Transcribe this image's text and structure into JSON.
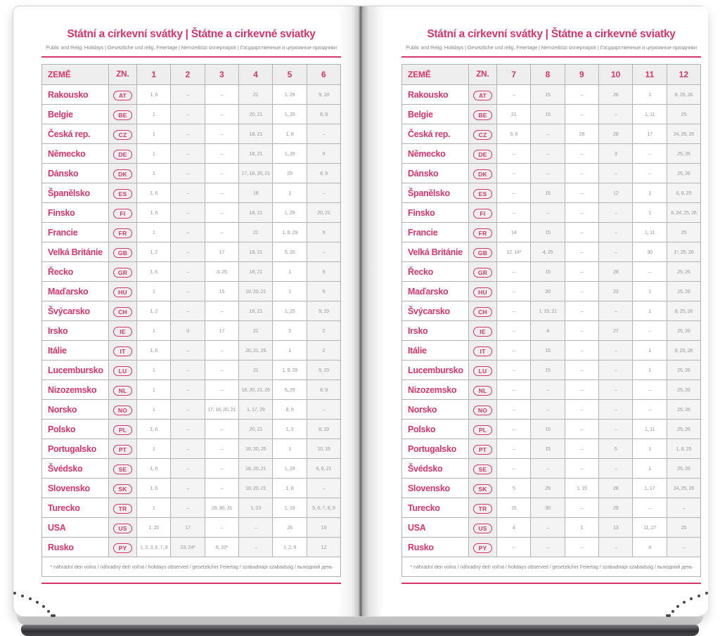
{
  "colors": {
    "accent": "#d8356b",
    "value_text": "#9a9a9a",
    "border": "#b3b3b3"
  },
  "page_header": {
    "title": "Státní a církevní svátky | Štátne a cirkevné sviatky",
    "subtitle": "Public and Relig. Holidays | Gesetzliche und relig. Feiertage | Nemzetközi ünnepnapok | Государственные и церковные праздники"
  },
  "table": {
    "country_header": "ZEMĚ",
    "code_header": "ZN.",
    "left_months": [
      "1",
      "2",
      "3",
      "4",
      "5",
      "6"
    ],
    "right_months": [
      "7",
      "8",
      "9",
      "10",
      "11",
      "12"
    ],
    "footnote": "* náhradní den volna / náhradný deň voľna / holidays observed / gesetzlicher Feiertag / szabadnapi szabadság / выходной день",
    "rows": [
      {
        "country": "Rakousko",
        "code": "AT",
        "left": [
          "1, 6",
          "–",
          "–",
          "21",
          "1, 29",
          "9, 19"
        ],
        "right": [
          "–",
          "15",
          "–",
          "26",
          "1",
          "8, 25, 26"
        ]
      },
      {
        "country": "Belgie",
        "code": "BE",
        "left": [
          "1",
          "–",
          "–",
          "20, 21",
          "1, 29",
          "8, 9"
        ],
        "right": [
          "21",
          "15",
          "–",
          "–",
          "1, 11",
          "25"
        ]
      },
      {
        "country": "Česká rep.",
        "code": "CZ",
        "left": [
          "1",
          "–",
          "–",
          "18, 21",
          "1, 8",
          "–"
        ],
        "right": [
          "5, 6",
          "–",
          "28",
          "28",
          "17",
          "24, 25, 26"
        ]
      },
      {
        "country": "Německo",
        "code": "DE",
        "left": [
          "1",
          "–",
          "–",
          "18, 21",
          "1, 29",
          "9"
        ],
        "right": [
          "–",
          "–",
          "–",
          "3",
          "–",
          "25, 26"
        ]
      },
      {
        "country": "Dánsko",
        "code": "DK",
        "left": [
          "1",
          "–",
          "–",
          "17, 18, 20, 21",
          "29",
          "8, 9"
        ],
        "right": [
          "–",
          "–",
          "–",
          "–",
          "–",
          "25, 26"
        ]
      },
      {
        "country": "Španělsko",
        "code": "ES",
        "left": [
          "1, 6",
          "–",
          "–",
          "18",
          "1",
          "–"
        ],
        "right": [
          "–",
          "15",
          "–",
          "12",
          "1",
          "6, 8, 25"
        ]
      },
      {
        "country": "Finsko",
        "code": "FI",
        "left": [
          "1, 6",
          "–",
          "–",
          "18, 21",
          "1, 29",
          "20, 21"
        ],
        "right": [
          "–",
          "–",
          "–",
          "–",
          "1",
          "6, 24, 25, 26"
        ]
      },
      {
        "country": "Francie",
        "code": "FR",
        "left": [
          "1",
          "–",
          "–",
          "21",
          "1, 8, 29",
          "9"
        ],
        "right": [
          "14",
          "15",
          "–",
          "–",
          "1, 11",
          "25"
        ]
      },
      {
        "country": "Velká Británie",
        "code": "GB",
        "left": [
          "1, 2",
          "–",
          "17",
          "18, 21",
          "5, 26",
          "–"
        ],
        "right": [
          "12, 14*",
          "4, 25",
          "–",
          "–",
          "30",
          "1*, 25, 26"
        ]
      },
      {
        "country": "Řecko",
        "code": "GR",
        "left": [
          "1, 6",
          "–",
          "3, 25",
          "18, 21",
          "1",
          "9"
        ],
        "right": [
          "–",
          "15",
          "–",
          "28",
          "–",
          "25, 26"
        ]
      },
      {
        "country": "Maďarsko",
        "code": "HU",
        "left": [
          "1",
          "–",
          "15",
          "18, 20, 21",
          "1",
          "9"
        ],
        "right": [
          "–",
          "20",
          "–",
          "23",
          "1",
          "25, 26"
        ]
      },
      {
        "country": "Švýcarsko",
        "code": "CH",
        "left": [
          "1, 2",
          "–",
          "–",
          "18, 21",
          "1, 25",
          "9, 19"
        ],
        "right": [
          "–",
          "1, 15, 21",
          "–",
          "–",
          "1",
          "8, 25, 26"
        ]
      },
      {
        "country": "Irsko",
        "code": "IE",
        "left": [
          "1",
          "3",
          "17",
          "21",
          "5",
          "2"
        ],
        "right": [
          "–",
          "4",
          "–",
          "27",
          "–",
          "25, 26"
        ]
      },
      {
        "country": "Itálie",
        "code": "IT",
        "left": [
          "1, 6",
          "–",
          "–",
          "20, 21, 25",
          "1",
          "2"
        ],
        "right": [
          "–",
          "15",
          "–",
          "–",
          "1",
          "8, 25, 26"
        ]
      },
      {
        "country": "Lucembursko",
        "code": "LU",
        "left": [
          "1",
          "–",
          "–",
          "21",
          "1, 9, 29",
          "9, 23"
        ],
        "right": [
          "–",
          "15",
          "–",
          "–",
          "1",
          "25, 26"
        ]
      },
      {
        "country": "Nizozemsko",
        "code": "NL",
        "left": [
          "1",
          "–",
          "–",
          "18, 20, 21, 26",
          "5, 29",
          "8, 9"
        ],
        "right": [
          "–",
          "–",
          "–",
          "–",
          "–",
          "25, 26"
        ]
      },
      {
        "country": "Norsko",
        "code": "NO",
        "left": [
          "1",
          "–",
          "17, 18, 20, 21",
          "1, 17, 29",
          "8, 9",
          "–"
        ],
        "right": [
          "–",
          "–",
          "–",
          "–",
          "–",
          "25, 26"
        ]
      },
      {
        "country": "Polsko",
        "code": "PL",
        "left": [
          "1, 6",
          "–",
          "–",
          "20, 21",
          "1, 3",
          "8, 19"
        ],
        "right": [
          "–",
          "15",
          "–",
          "–",
          "1, 11",
          "25, 26"
        ]
      },
      {
        "country": "Portugalsko",
        "code": "PT",
        "left": [
          "1",
          "–",
          "–",
          "18, 20, 25",
          "1",
          "10, 19"
        ],
        "right": [
          "–",
          "15",
          "–",
          "5",
          "1",
          "1, 8, 25"
        ]
      },
      {
        "country": "Švédsko",
        "code": "SE",
        "left": [
          "1, 6",
          "–",
          "–",
          "18, 20, 21",
          "1, 29",
          "6, 8, 21"
        ],
        "right": [
          "–",
          "–",
          "–",
          "–",
          "1",
          "25, 26"
        ]
      },
      {
        "country": "Slovensko",
        "code": "SK",
        "left": [
          "1, 6",
          "–",
          "–",
          "18, 20, 21",
          "1, 8",
          "–"
        ],
        "right": [
          "5",
          "29",
          "1, 15",
          "28",
          "1, 17",
          "24, 25, 26"
        ]
      },
      {
        "country": "Turecko",
        "code": "TR",
        "left": [
          "1",
          "–",
          "29, 30, 31",
          "1, 23",
          "1, 19",
          "5, 6, 7, 8, 9"
        ],
        "right": [
          "15",
          "30",
          "–",
          "29",
          "–",
          "–"
        ]
      },
      {
        "country": "USA",
        "code": "US",
        "left": [
          "1, 20",
          "17",
          "–",
          "–",
          "26",
          "19"
        ],
        "right": [
          "4",
          "–",
          "1",
          "13",
          "11, 27",
          "25"
        ]
      },
      {
        "country": "Rusko",
        "code": "PY",
        "left": [
          "1, 2, 3, 6, 7, 8",
          "23, 24*",
          "8, 10*",
          "–",
          "1, 2, 9",
          "12"
        ],
        "right": [
          "–",
          "–",
          "–",
          "–",
          "4",
          "–"
        ]
      }
    ]
  }
}
